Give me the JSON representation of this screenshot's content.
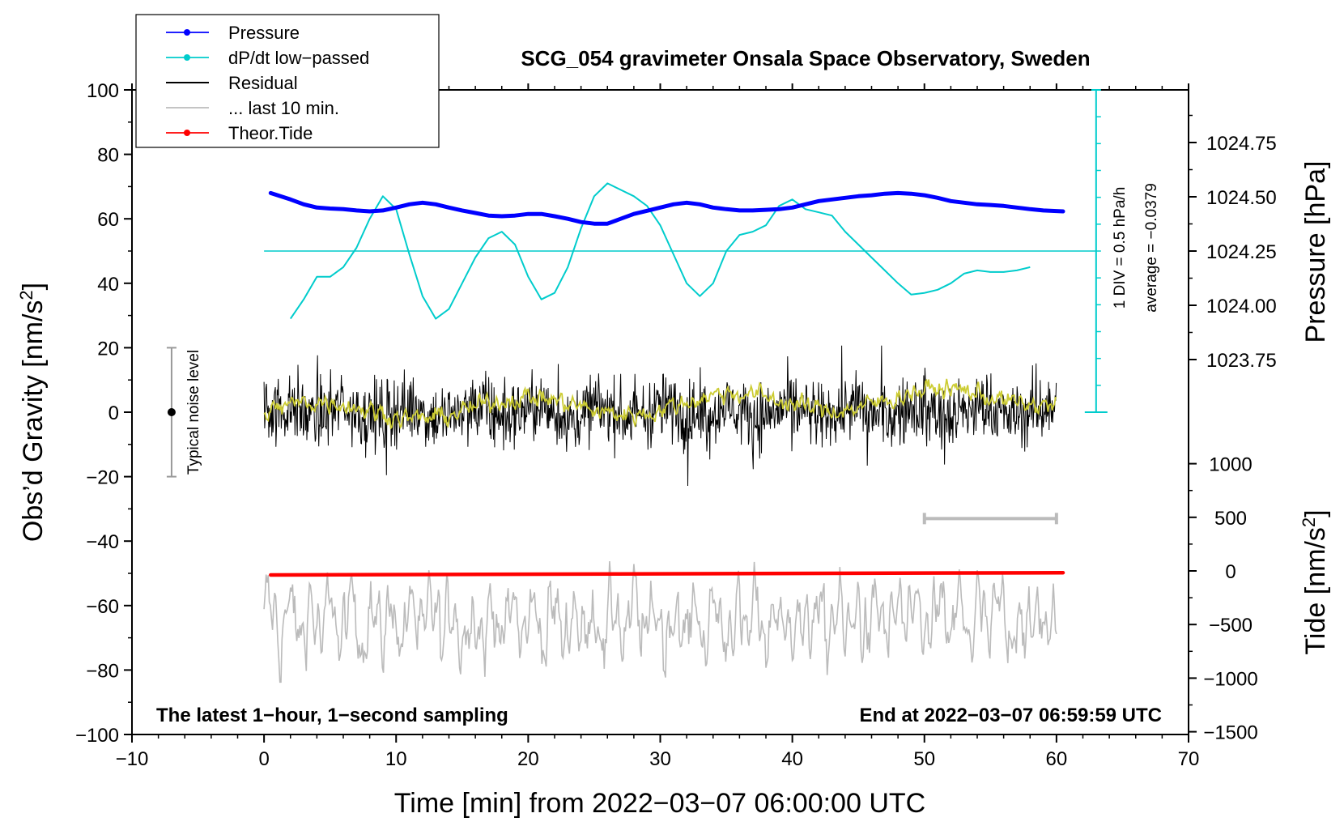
{
  "chart_data": {
    "type": "line",
    "title": "SCG_054 gravimeter Onsala Space Observatory, Sweden",
    "xlabel": "Time [min] from 2022−03−07 06:00:00 UTC",
    "ylabel_left": "Obs’d Gravity [nm/s",
    "ylabel_left_sup": "2",
    "ylabel_left_close": "]",
    "ylabel_pressure": "Pressure [hPa]",
    "ylabel_tide": "Tide [nm/s",
    "ylabel_tide_sup": "2",
    "ylabel_tide_close": "]",
    "xlim": [
      -10,
      70
    ],
    "ylim": [
      -100,
      100
    ],
    "x_ticks": [
      "−10",
      "0",
      "10",
      "20",
      "30",
      "40",
      "50",
      "60",
      "70"
    ],
    "x_tick_values": [
      -10,
      0,
      10,
      20,
      30,
      40,
      50,
      60,
      70
    ],
    "y_ticks": [
      "100",
      "80",
      "60",
      "40",
      "20",
      "0",
      "−20",
      "−40",
      "−60",
      "−80",
      "−100"
    ],
    "y_tick_values": [
      100,
      80,
      60,
      40,
      20,
      0,
      -20,
      -40,
      -60,
      -80,
      -100
    ],
    "pressure_ticks": [
      "1024.75",
      "1024.50",
      "1024.25",
      "1024.00",
      "1023.75"
    ],
    "pressure_tick_values": [
      1024.75,
      1024.5,
      1024.25,
      1024.0,
      1023.75
    ],
    "tide_ticks": [
      "1000",
      "500",
      "0",
      "−500",
      "−1000",
      "−1500"
    ],
    "tide_tick_values": [
      1000,
      500,
      0,
      -500,
      -1000,
      -1500
    ],
    "legend": [
      {
        "label": "Pressure",
        "color": "#0000ff",
        "marker": true
      },
      {
        "label": "dP/dt low−passed",
        "color": "#00cccc",
        "marker": true
      },
      {
        "label": "Residual",
        "color": "#000000",
        "marker": false
      },
      {
        "label": "... last 10 min.",
        "color": "#bbbbbb",
        "marker": false
      },
      {
        "label": "Theor.Tide",
        "color": "#ff0000",
        "marker": true
      }
    ],
    "footer_left": "The latest 1−hour, 1−second sampling",
    "footer_right": "End at 2022−03−07 06:59:59 UTC",
    "noise_label": "Typical noise level",
    "noise_range": [
      -20,
      20
    ],
    "noise_x": -7,
    "dpdt_scale_label": "1 DIV = 0.5 hPa/h",
    "dpdt_average_label": "average = −0.0379",
    "dpdt_reference_y": 50,
    "dpdt_scale_x": 63,
    "dpdt_scale_range": [
      0,
      100
    ],
    "last10_bar": {
      "x_start": 50,
      "x_end": 60,
      "y": -33
    },
    "series": [
      {
        "name": "Pressure",
        "color": "#0000ff",
        "x": [
          0.5,
          2,
          3,
          4,
          5,
          6,
          7,
          8,
          9,
          10,
          11,
          12,
          13,
          14,
          15,
          16,
          17,
          18,
          19,
          20,
          21,
          22,
          23,
          24,
          25,
          26,
          27,
          28,
          29,
          30,
          31,
          32,
          33,
          34,
          35,
          36,
          37,
          38,
          39,
          40,
          41,
          42,
          43,
          44,
          45,
          46,
          47,
          48,
          49,
          50,
          51,
          52,
          53,
          54,
          55,
          56,
          57,
          58,
          59,
          60.5
        ],
        "values": [
          68,
          66,
          64.5,
          63.5,
          63.2,
          63,
          62.6,
          62.3,
          62.6,
          63.5,
          64.5,
          65,
          64.5,
          63.5,
          62.6,
          61.8,
          61,
          60.8,
          61,
          61.5,
          61.5,
          60.8,
          60,
          59,
          58.5,
          58.5,
          60,
          61.5,
          62.5,
          63.5,
          64.5,
          65,
          64.5,
          63.5,
          63,
          62.6,
          62.6,
          62.8,
          63,
          63.5,
          64.5,
          65.5,
          66,
          66.5,
          67,
          67.3,
          67.8,
          68,
          67.8,
          67.3,
          66.5,
          65.5,
          65,
          64.5,
          64.3,
          64,
          63.5,
          63,
          62.6,
          62.3
        ]
      },
      {
        "name": "dP/dt low−passed",
        "color": "#00cccc",
        "x": [
          2,
          3,
          4,
          5,
          6,
          7,
          8,
          9,
          10,
          11,
          12,
          13,
          14,
          15,
          16,
          17,
          18,
          19,
          20,
          21,
          22,
          23,
          24,
          25,
          26,
          27,
          28,
          29,
          30,
          31,
          32,
          33,
          34,
          35,
          36,
          37,
          38,
          39,
          40,
          41,
          42,
          43,
          44,
          45,
          46,
          47,
          48,
          49,
          50,
          51,
          52,
          53,
          54,
          55,
          56,
          57,
          58
        ],
        "values": [
          29,
          35,
          42,
          42,
          45,
          51,
          60,
          67,
          63,
          49,
          36,
          29,
          32,
          40,
          48,
          54,
          56,
          52,
          42,
          35,
          37,
          45,
          57,
          67,
          71,
          69,
          67,
          64,
          58,
          49,
          40,
          36,
          40,
          50,
          55,
          56,
          58,
          64,
          66,
          63,
          62,
          61,
          56,
          52,
          48,
          44,
          40,
          36.5,
          37,
          38,
          40,
          43,
          44,
          43.5,
          43.5,
          44,
          45
        ]
      },
      {
        "name": "Residual",
        "color": "#000000",
        "x_range": [
          0,
          60
        ],
        "amplitude": 10
      },
      {
        "name": "Residual smoothed",
        "color": "#cccc33",
        "x_range": [
          0,
          60
        ],
        "amplitude": 4
      },
      {
        "name": "... last 10 min.",
        "color": "#bbbbbb",
        "x_range": [
          0,
          60
        ],
        "baseline": -65,
        "amplitude": 10
      },
      {
        "name": "Theor.Tide",
        "color": "#ff0000",
        "x": [
          0.5,
          60.5
        ],
        "values": [
          -50.5,
          -49.8
        ]
      }
    ]
  }
}
